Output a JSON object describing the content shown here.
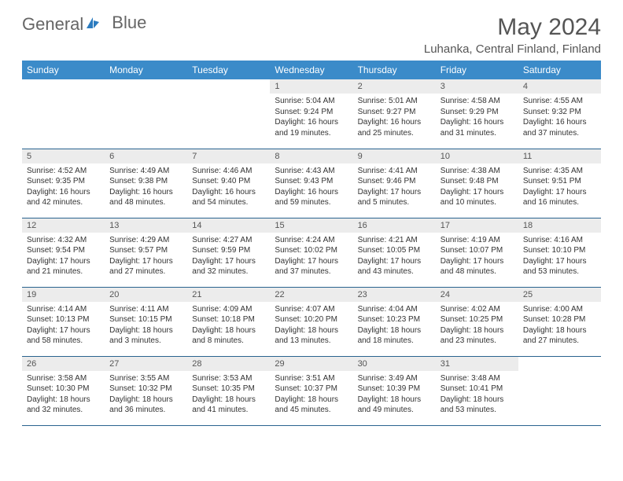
{
  "brand": {
    "part1": "General",
    "part2": "Blue"
  },
  "title": "May 2024",
  "location": "Luhanka, Central Finland, Finland",
  "colors": {
    "header_bg": "#3b8bc9",
    "header_text": "#ffffff",
    "daynum_bg": "#ececec",
    "border": "#29638f",
    "brand_gray": "#666666",
    "brand_blue": "#2b7bbf"
  },
  "days_of_week": [
    "Sunday",
    "Monday",
    "Tuesday",
    "Wednesday",
    "Thursday",
    "Friday",
    "Saturday"
  ],
  "weeks": [
    [
      {
        "num": "",
        "lines": []
      },
      {
        "num": "",
        "lines": []
      },
      {
        "num": "",
        "lines": []
      },
      {
        "num": "1",
        "lines": [
          "Sunrise: 5:04 AM",
          "Sunset: 9:24 PM",
          "Daylight: 16 hours",
          "and 19 minutes."
        ]
      },
      {
        "num": "2",
        "lines": [
          "Sunrise: 5:01 AM",
          "Sunset: 9:27 PM",
          "Daylight: 16 hours",
          "and 25 minutes."
        ]
      },
      {
        "num": "3",
        "lines": [
          "Sunrise: 4:58 AM",
          "Sunset: 9:29 PM",
          "Daylight: 16 hours",
          "and 31 minutes."
        ]
      },
      {
        "num": "4",
        "lines": [
          "Sunrise: 4:55 AM",
          "Sunset: 9:32 PM",
          "Daylight: 16 hours",
          "and 37 minutes."
        ]
      }
    ],
    [
      {
        "num": "5",
        "lines": [
          "Sunrise: 4:52 AM",
          "Sunset: 9:35 PM",
          "Daylight: 16 hours",
          "and 42 minutes."
        ]
      },
      {
        "num": "6",
        "lines": [
          "Sunrise: 4:49 AM",
          "Sunset: 9:38 PM",
          "Daylight: 16 hours",
          "and 48 minutes."
        ]
      },
      {
        "num": "7",
        "lines": [
          "Sunrise: 4:46 AM",
          "Sunset: 9:40 PM",
          "Daylight: 16 hours",
          "and 54 minutes."
        ]
      },
      {
        "num": "8",
        "lines": [
          "Sunrise: 4:43 AM",
          "Sunset: 9:43 PM",
          "Daylight: 16 hours",
          "and 59 minutes."
        ]
      },
      {
        "num": "9",
        "lines": [
          "Sunrise: 4:41 AM",
          "Sunset: 9:46 PM",
          "Daylight: 17 hours",
          "and 5 minutes."
        ]
      },
      {
        "num": "10",
        "lines": [
          "Sunrise: 4:38 AM",
          "Sunset: 9:48 PM",
          "Daylight: 17 hours",
          "and 10 minutes."
        ]
      },
      {
        "num": "11",
        "lines": [
          "Sunrise: 4:35 AM",
          "Sunset: 9:51 PM",
          "Daylight: 17 hours",
          "and 16 minutes."
        ]
      }
    ],
    [
      {
        "num": "12",
        "lines": [
          "Sunrise: 4:32 AM",
          "Sunset: 9:54 PM",
          "Daylight: 17 hours",
          "and 21 minutes."
        ]
      },
      {
        "num": "13",
        "lines": [
          "Sunrise: 4:29 AM",
          "Sunset: 9:57 PM",
          "Daylight: 17 hours",
          "and 27 minutes."
        ]
      },
      {
        "num": "14",
        "lines": [
          "Sunrise: 4:27 AM",
          "Sunset: 9:59 PM",
          "Daylight: 17 hours",
          "and 32 minutes."
        ]
      },
      {
        "num": "15",
        "lines": [
          "Sunrise: 4:24 AM",
          "Sunset: 10:02 PM",
          "Daylight: 17 hours",
          "and 37 minutes."
        ]
      },
      {
        "num": "16",
        "lines": [
          "Sunrise: 4:21 AM",
          "Sunset: 10:05 PM",
          "Daylight: 17 hours",
          "and 43 minutes."
        ]
      },
      {
        "num": "17",
        "lines": [
          "Sunrise: 4:19 AM",
          "Sunset: 10:07 PM",
          "Daylight: 17 hours",
          "and 48 minutes."
        ]
      },
      {
        "num": "18",
        "lines": [
          "Sunrise: 4:16 AM",
          "Sunset: 10:10 PM",
          "Daylight: 17 hours",
          "and 53 minutes."
        ]
      }
    ],
    [
      {
        "num": "19",
        "lines": [
          "Sunrise: 4:14 AM",
          "Sunset: 10:13 PM",
          "Daylight: 17 hours",
          "and 58 minutes."
        ]
      },
      {
        "num": "20",
        "lines": [
          "Sunrise: 4:11 AM",
          "Sunset: 10:15 PM",
          "Daylight: 18 hours",
          "and 3 minutes."
        ]
      },
      {
        "num": "21",
        "lines": [
          "Sunrise: 4:09 AM",
          "Sunset: 10:18 PM",
          "Daylight: 18 hours",
          "and 8 minutes."
        ]
      },
      {
        "num": "22",
        "lines": [
          "Sunrise: 4:07 AM",
          "Sunset: 10:20 PM",
          "Daylight: 18 hours",
          "and 13 minutes."
        ]
      },
      {
        "num": "23",
        "lines": [
          "Sunrise: 4:04 AM",
          "Sunset: 10:23 PM",
          "Daylight: 18 hours",
          "and 18 minutes."
        ]
      },
      {
        "num": "24",
        "lines": [
          "Sunrise: 4:02 AM",
          "Sunset: 10:25 PM",
          "Daylight: 18 hours",
          "and 23 minutes."
        ]
      },
      {
        "num": "25",
        "lines": [
          "Sunrise: 4:00 AM",
          "Sunset: 10:28 PM",
          "Daylight: 18 hours",
          "and 27 minutes."
        ]
      }
    ],
    [
      {
        "num": "26",
        "lines": [
          "Sunrise: 3:58 AM",
          "Sunset: 10:30 PM",
          "Daylight: 18 hours",
          "and 32 minutes."
        ]
      },
      {
        "num": "27",
        "lines": [
          "Sunrise: 3:55 AM",
          "Sunset: 10:32 PM",
          "Daylight: 18 hours",
          "and 36 minutes."
        ]
      },
      {
        "num": "28",
        "lines": [
          "Sunrise: 3:53 AM",
          "Sunset: 10:35 PM",
          "Daylight: 18 hours",
          "and 41 minutes."
        ]
      },
      {
        "num": "29",
        "lines": [
          "Sunrise: 3:51 AM",
          "Sunset: 10:37 PM",
          "Daylight: 18 hours",
          "and 45 minutes."
        ]
      },
      {
        "num": "30",
        "lines": [
          "Sunrise: 3:49 AM",
          "Sunset: 10:39 PM",
          "Daylight: 18 hours",
          "and 49 minutes."
        ]
      },
      {
        "num": "31",
        "lines": [
          "Sunrise: 3:48 AM",
          "Sunset: 10:41 PM",
          "Daylight: 18 hours",
          "and 53 minutes."
        ]
      },
      {
        "num": "",
        "lines": []
      }
    ]
  ]
}
